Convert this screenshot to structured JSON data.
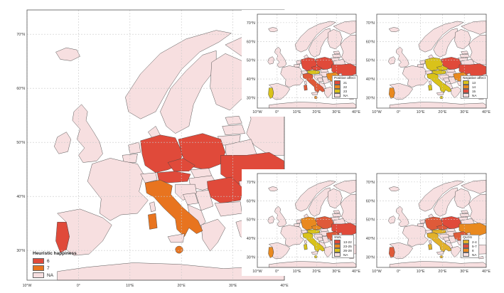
{
  "colors": {
    "na": "#f7dfe0",
    "red": "#e04a3a",
    "orange": "#e8741f",
    "darkorange": "#e9891f",
    "yellow": "#d9c21a",
    "gold": "#e2b12a",
    "tomato": "#df5a39"
  },
  "main": {
    "lat_labels": [
      "70°N",
      "60°N",
      "50°N",
      "40°N",
      "30°N"
    ],
    "lon_labels": [
      "10°W",
      "0°",
      "10°E",
      "20°E",
      "30°E",
      "40°E"
    ],
    "legend": {
      "title": "Heuristic happiness",
      "items": [
        {
          "label": "6",
          "color": "#e04a3a"
        },
        {
          "label": "7",
          "color": "#e8741f"
        },
        {
          "label": "NA",
          "color": "#f7dfe0"
        }
      ]
    }
  },
  "insets": [
    {
      "id": "positive",
      "legend": {
        "title": "Positive affect",
        "items": [
          {
            "label": "21",
            "color": "#e04a3a"
          },
          {
            "label": "22",
            "color": "#e9891f"
          },
          {
            "label": "23",
            "color": "#d9c21a"
          },
          {
            "label": "NA",
            "color": "#f7dfe0"
          }
        ]
      }
    },
    {
      "id": "negative",
      "legend": {
        "title": "Negative affect",
        "items": [
          {
            "label": "13",
            "color": "#d9c21a"
          },
          {
            "label": "14",
            "color": "#e9891f"
          },
          {
            "label": "15",
            "color": "#e04a3a"
          },
          {
            "label": "NA",
            "color": "#f7dfe0"
          }
        ]
      }
    },
    {
      "id": "swl",
      "legend": {
        "title": "SWL",
        "items": [
          {
            "label": "13-22",
            "color": "#e04a3a"
          },
          {
            "label": "23-25",
            "color": "#e9891f"
          },
          {
            "label": "26-28",
            "color": "#d9c21a"
          },
          {
            "label": "NA",
            "color": "#f7dfe0"
          }
        ]
      }
    },
    {
      "id": "qlds",
      "legend": {
        "title": "QLDS",
        "items": [
          {
            "label": "2-4",
            "color": "#e2b12a"
          },
          {
            "label": "5-7",
            "color": "#e04a3a"
          },
          {
            "label": "8",
            "color": "#e9891f"
          },
          {
            "label": "NA",
            "color": "#f7dfe0"
          }
        ]
      }
    }
  ],
  "inset_lat_labels": [
    "70°N",
    "60°N",
    "50°N",
    "40°N",
    "30°N"
  ],
  "inset_lon_labels": [
    "10°W",
    "0°",
    "10°E",
    "20°E",
    "30°E",
    "40°E"
  ],
  "fills": {
    "main": {
      "portugal": "red",
      "poland": "red",
      "ukraine": "red",
      "germany": "red",
      "czechia": "red",
      "romania": "red",
      "austria": "red",
      "italy": "orange",
      "malta": "orange",
      "sardinia": "orange"
    },
    "positive": {
      "portugal": "yellow",
      "poland": "red",
      "ukraine": "red",
      "germany": "red",
      "czechia": "red",
      "romania": "darkorange",
      "austria": "yellow",
      "italy": "tomato",
      "malta": "darkorange",
      "sardinia": "tomato"
    },
    "negative": {
      "portugal": "darkorange",
      "poland": "red",
      "ukraine": "red",
      "germany": "yellow",
      "czechia": "yellow",
      "romania": "darkorange",
      "austria": "yellow",
      "italy": "yellow",
      "malta": "yellow",
      "sardinia": "yellow"
    },
    "swl": {
      "portugal": "darkorange",
      "poland": "tomato",
      "ukraine": "red",
      "germany": "darkorange",
      "czechia": "darkorange",
      "romania": "tomato",
      "austria": "yellow",
      "italy": "yellow",
      "malta": "yellow",
      "sardinia": "yellow"
    },
    "qlds": {
      "portugal": "tomato",
      "poland": "red",
      "ukraine": "darkorange",
      "germany": "tomato",
      "czechia": "tomato",
      "romania": "tomato",
      "austria": "gold",
      "italy": "gold",
      "malta": "gold",
      "sardinia": "gold"
    }
  }
}
